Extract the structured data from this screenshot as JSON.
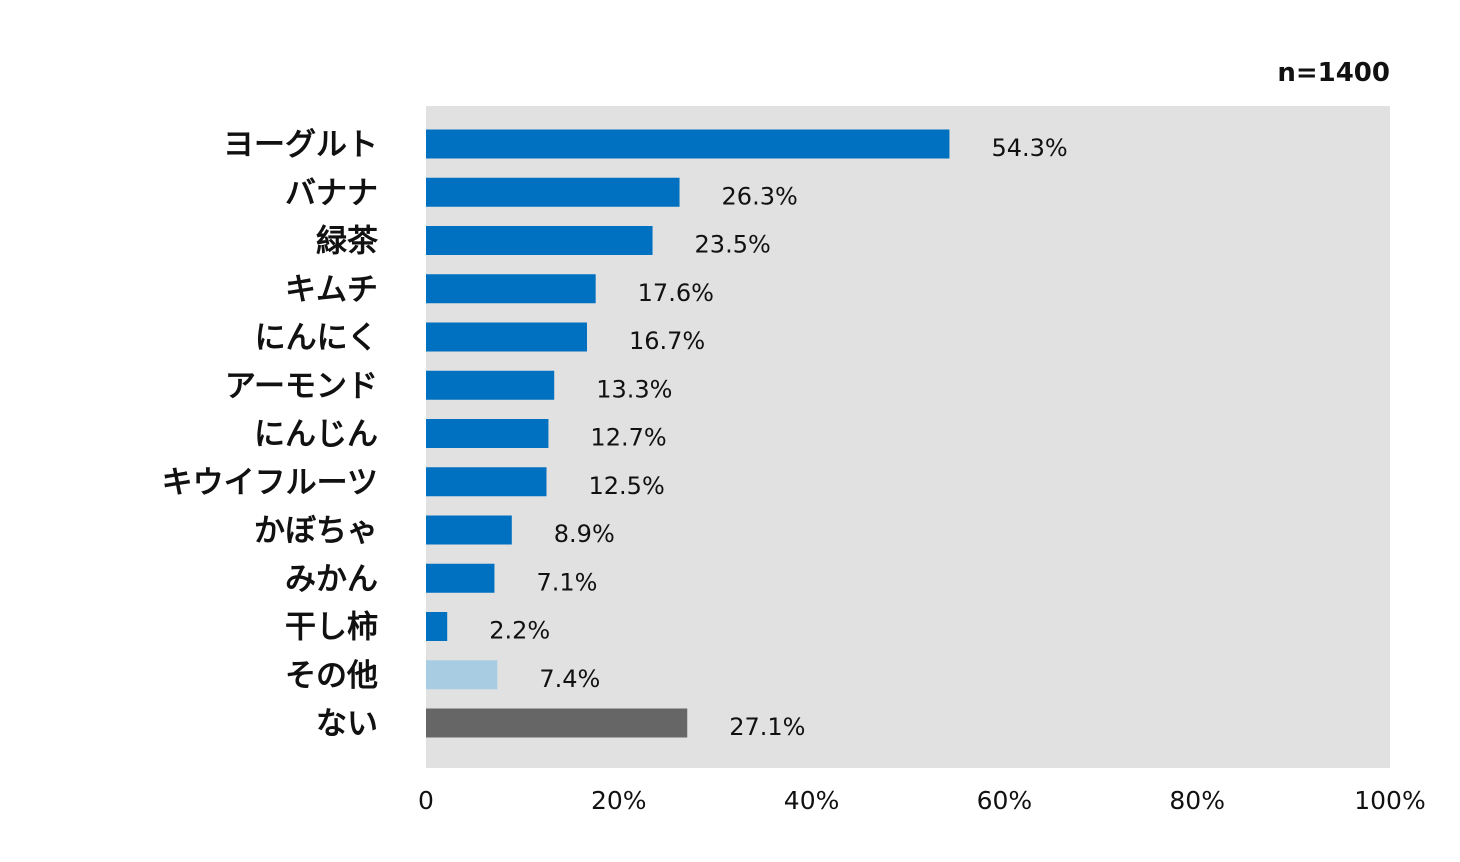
{
  "chart_data": {
    "type": "bar",
    "orientation": "horizontal",
    "sample_size_label": "n=1400",
    "categories": [
      "ヨーグルト",
      "バナナ",
      "緑茶",
      "キムチ",
      "にんにく",
      "アーモンド",
      "にんじん",
      "キウイフルーツ",
      "かぼちゃ",
      "みかん",
      "干し柿",
      "その他",
      "ない"
    ],
    "values": [
      54.3,
      26.3,
      23.5,
      17.6,
      16.7,
      13.3,
      12.7,
      12.5,
      8.9,
      7.1,
      2.2,
      7.4,
      27.1
    ],
    "value_labels": [
      "54.3%",
      "26.3%",
      "23.5%",
      "17.6%",
      "16.7%",
      "13.3%",
      "12.7%",
      "12.5%",
      "8.9%",
      "7.1%",
      "2.2%",
      "7.4%",
      "27.1%"
    ],
    "bar_colors": [
      "#0070c0",
      "#0070c0",
      "#0070c0",
      "#0070c0",
      "#0070c0",
      "#0070c0",
      "#0070c0",
      "#0070c0",
      "#0070c0",
      "#0070c0",
      "#0070c0",
      "#a8cde3",
      "#666666"
    ],
    "plot_background": "#e1e1e1",
    "xlim": [
      0,
      100
    ],
    "x_ticks": [
      0,
      20,
      40,
      60,
      80,
      100
    ],
    "x_tick_labels": [
      "0",
      "20%",
      "40%",
      "60%",
      "80%",
      "100%"
    ],
    "grid": false,
    "legend": false
  }
}
